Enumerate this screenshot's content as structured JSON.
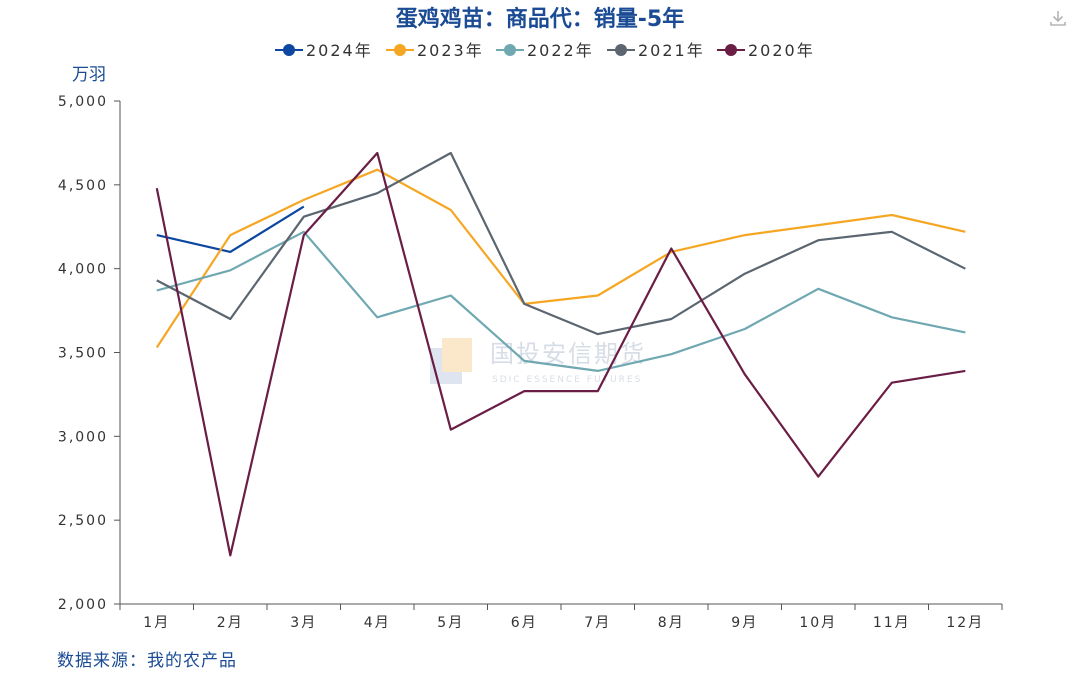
{
  "chart_data": {
    "type": "line",
    "title": "蛋鸡鸡苗：商品代：销量-5年",
    "ylabel": "万羽",
    "xlabel": "",
    "categories": [
      "1月",
      "2月",
      "3月",
      "4月",
      "5月",
      "6月",
      "7月",
      "8月",
      "9月",
      "10月",
      "11月",
      "12月"
    ],
    "ylim": [
      2000,
      5000
    ],
    "yticks": [
      2000,
      2500,
      3000,
      3500,
      4000,
      4500,
      5000
    ],
    "ytick_labels": [
      "2,000",
      "2,500",
      "3,000",
      "3,500",
      "4,000",
      "4,500",
      "5,000"
    ],
    "grid": false,
    "legend_position": "top",
    "series": [
      {
        "name": "2024年",
        "color": "#0d47a1",
        "values": [
          4200,
          4100,
          4370,
          null,
          null,
          null,
          null,
          null,
          null,
          null,
          null,
          null
        ]
      },
      {
        "name": "2023年",
        "color": "#f5a623",
        "values": [
          3530,
          4200,
          4410,
          4590,
          4350,
          3790,
          3840,
          4100,
          4200,
          4260,
          4320,
          4220
        ]
      },
      {
        "name": "2022年",
        "color": "#6fa8b1",
        "values": [
          3870,
          3990,
          4220,
          3710,
          3840,
          3450,
          3390,
          3490,
          3640,
          3880,
          3710,
          3620
        ]
      },
      {
        "name": "2021年",
        "color": "#5b6670",
        "values": [
          3930,
          3700,
          4310,
          4450,
          4690,
          3790,
          3610,
          3700,
          3970,
          4170,
          4220,
          4000
        ]
      },
      {
        "name": "2020年",
        "color": "#6b1e45",
        "values": [
          4480,
          2290,
          4200,
          4690,
          3040,
          3270,
          3270,
          4120,
          3370,
          2760,
          3320,
          3390
        ]
      }
    ]
  },
  "watermark": {
    "cn": "国投安信期货",
    "en": "SDIC ESSENCE FUTURES"
  },
  "source_text": "数据来源：我的农产品",
  "colors": {
    "text": "#1a4b94",
    "axis": "#555555",
    "title": "#1a4b94"
  },
  "icons": {
    "download": "download-icon"
  }
}
